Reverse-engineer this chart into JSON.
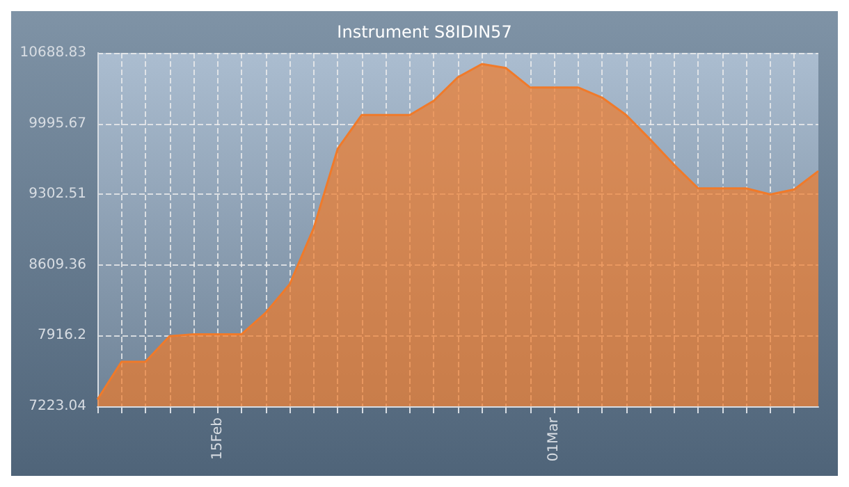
{
  "chart_data": {
    "type": "area",
    "title": "Instrument S8IDIN57",
    "x": [
      "--02-10",
      "--02-11",
      "--02-12",
      "--02-13",
      "--02-14",
      "--02-15",
      "--02-16",
      "--02-17",
      "--02-18",
      "--02-19",
      "--02-20",
      "--02-21",
      "--02-22",
      "--02-23",
      "--02-24",
      "--02-25",
      "--02-26",
      "--02-27",
      "--02-28",
      "--03-01",
      "--03-02",
      "--03-03",
      "--03-04",
      "--03-05",
      "--03-06",
      "--03-07",
      "--03-08",
      "--03-09",
      "--03-10",
      "--03-11",
      "--03-12"
    ],
    "series": [
      {
        "color": "#f07a2a",
        "values": [
          7290,
          7660,
          7660,
          7910,
          7930,
          7930,
          7930,
          8140,
          8420,
          8970,
          9750,
          10080,
          10080,
          10080,
          10220,
          10450,
          10580,
          10540,
          10350,
          10350,
          10350,
          10250,
          10080,
          9840,
          9590,
          9360,
          9360,
          9360,
          9300,
          9350,
          9530
        ]
      }
    ],
    "xlim": [
      "--02-10",
      "--03-12"
    ],
    "xticks": [
      {
        "value": "--02-10",
        "label": null
      },
      {
        "value": "--02-11",
        "label": null
      },
      {
        "value": "--02-12",
        "label": null
      },
      {
        "value": "--02-13",
        "label": null
      },
      {
        "value": "--02-14",
        "label": null
      },
      {
        "value": "--02-15",
        "label": "15Feb"
      },
      {
        "value": "--02-16",
        "label": null
      },
      {
        "value": "--02-17",
        "label": null
      },
      {
        "value": "--02-18",
        "label": null
      },
      {
        "value": "--02-19",
        "label": null
      },
      {
        "value": "--02-20",
        "label": null
      },
      {
        "value": "--02-21",
        "label": null
      },
      {
        "value": "--02-22",
        "label": null
      },
      {
        "value": "--02-23",
        "label": null
      },
      {
        "value": "--02-24",
        "label": null
      },
      {
        "value": "--02-25",
        "label": null
      },
      {
        "value": "--02-26",
        "label": null
      },
      {
        "value": "--02-27",
        "label": null
      },
      {
        "value": "--02-28",
        "label": null
      },
      {
        "value": "--03-01",
        "label": "01Mar"
      },
      {
        "value": "--03-02",
        "label": null
      },
      {
        "value": "--03-03",
        "label": null
      },
      {
        "value": "--03-04",
        "label": null
      },
      {
        "value": "--03-05",
        "label": null
      },
      {
        "value": "--03-06",
        "label": null
      },
      {
        "value": "--03-07",
        "label": null
      },
      {
        "value": "--03-08",
        "label": null
      },
      {
        "value": "--03-09",
        "label": null
      },
      {
        "value": "--03-10",
        "label": null
      },
      {
        "value": "--03-11",
        "label": null
      }
    ],
    "ylim": [
      7223.04,
      10688.83
    ],
    "yticks": [
      7223.04,
      7916.2,
      8609.36,
      9302.51,
      9995.67,
      10688.83
    ],
    "grid": true,
    "marker": "none",
    "line_style": "solid"
  }
}
